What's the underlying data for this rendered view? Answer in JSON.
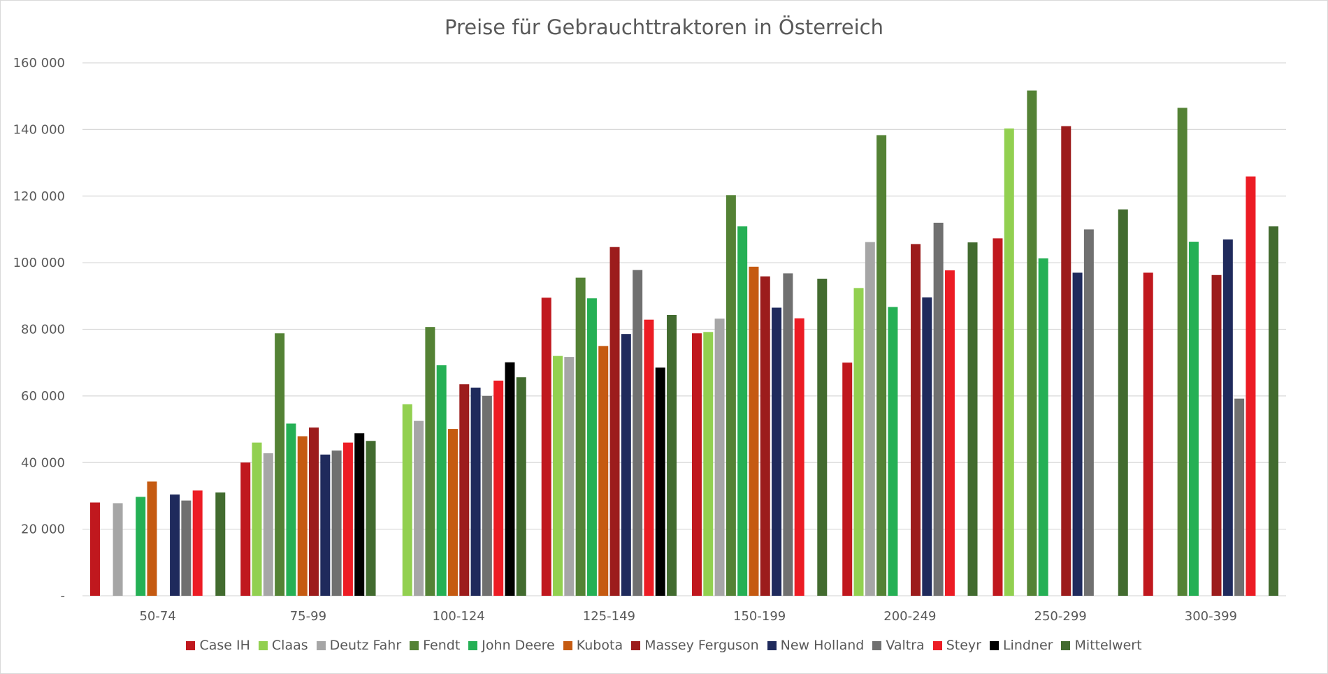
{
  "chart_data": {
    "type": "bar",
    "title": "Preise für Gebrauchttraktoren in Österreich",
    "xlabel": "",
    "ylabel": "",
    "ylim": [
      0,
      160000
    ],
    "yticks": [
      0,
      20000,
      40000,
      60000,
      80000,
      100000,
      120000,
      140000,
      160000
    ],
    "ytick_labels": [
      "-",
      "20 000",
      "40 000",
      "60 000",
      "80 000",
      "100 000",
      "120 000",
      "140 000",
      "160 000"
    ],
    "grid": true,
    "legend_position": "bottom",
    "categories": [
      "50-74",
      "75-99",
      "100-124",
      "125-149",
      "150-199",
      "200-249",
      "250-299",
      "300-399"
    ],
    "series": [
      {
        "name": "Case IH",
        "color": "#c0181e",
        "values": [
          28000,
          40000,
          null,
          89500,
          78800,
          70000,
          107300,
          97000
        ]
      },
      {
        "name": "Claas",
        "color": "#92d050",
        "values": [
          null,
          46000,
          57500,
          72000,
          79200,
          92400,
          140300,
          null
        ]
      },
      {
        "name": "Deutz Fahr",
        "color": "#a6a6a6",
        "values": [
          27800,
          42800,
          52500,
          71700,
          83200,
          106200,
          null,
          null
        ]
      },
      {
        "name": "Fendt",
        "color": "#548235",
        "values": [
          null,
          78800,
          80700,
          95500,
          120300,
          138300,
          151700,
          146500
        ]
      },
      {
        "name": "John Deere",
        "color": "#25b055",
        "values": [
          29700,
          51700,
          69200,
          89300,
          110900,
          86700,
          101300,
          106300
        ]
      },
      {
        "name": "Kubota",
        "color": "#c55a11",
        "values": [
          34300,
          47900,
          50100,
          75000,
          98800,
          null,
          null,
          null
        ]
      },
      {
        "name": "Massey Ferguson",
        "color": "#9c1c1c",
        "values": [
          null,
          50500,
          63500,
          104700,
          95900,
          105600,
          141000,
          96300
        ]
      },
      {
        "name": "New Holland",
        "color": "#1f2a5c",
        "values": [
          30400,
          42400,
          62500,
          78600,
          86500,
          89600,
          97000,
          107000
        ]
      },
      {
        "name": "Valtra",
        "color": "#707070",
        "values": [
          28600,
          43600,
          60000,
          97800,
          96800,
          112000,
          110000,
          59200
        ]
      },
      {
        "name": "Steyr",
        "color": "#ec1c24",
        "values": [
          31600,
          46000,
          64600,
          82900,
          83300,
          97700,
          null,
          125900
        ]
      },
      {
        "name": "Lindner",
        "color": "#000000",
        "values": [
          null,
          48800,
          70100,
          68500,
          null,
          null,
          null,
          null
        ]
      },
      {
        "name": "Mittelwert",
        "color": "#426b2f",
        "values": [
          31000,
          46500,
          65600,
          84300,
          95200,
          106100,
          116000,
          110900
        ]
      }
    ]
  }
}
